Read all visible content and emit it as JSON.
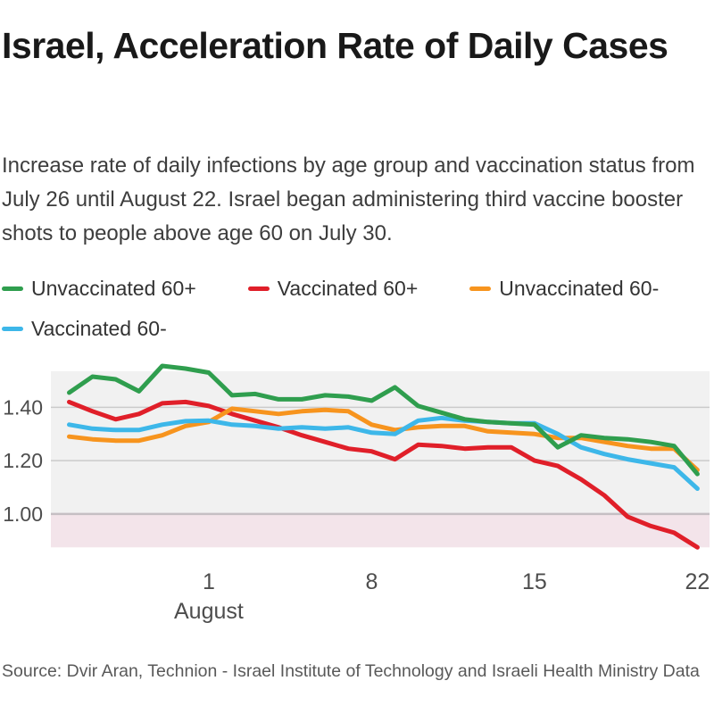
{
  "header": {
    "title": "Israel, Acceleration Rate of Daily Cases",
    "subtitle": "Increase rate of daily infections by age group and vaccination status from July 26 until August 22. Israel began administering third vaccine booster shots to people above age 60 on July 30."
  },
  "legend": {
    "items": [
      {
        "label": "Unvaccinated 60+",
        "color": "#2f9e4e"
      },
      {
        "label": "Vaccinated 60+",
        "color": "#e01f29"
      },
      {
        "label": "Unvaccinated 60-",
        "color": "#f7941e"
      },
      {
        "label": "Vaccinated 60-",
        "color": "#3db7e9"
      }
    ]
  },
  "chart_data": {
    "type": "line",
    "title": "Israel, Acceleration Rate of Daily Cases",
    "xlabel": "August",
    "ylabel": "",
    "grid": true,
    "legend_position": "top",
    "dates": [
      "Jul 26",
      "Jul 27",
      "Jul 28",
      "Jul 29",
      "Jul 30",
      "Jul 31",
      "Aug 1",
      "Aug 2",
      "Aug 3",
      "Aug 4",
      "Aug 5",
      "Aug 6",
      "Aug 7",
      "Aug 8",
      "Aug 9",
      "Aug 10",
      "Aug 11",
      "Aug 12",
      "Aug 13",
      "Aug 14",
      "Aug 15",
      "Aug 16",
      "Aug 17",
      "Aug 18",
      "Aug 19",
      "Aug 20",
      "Aug 21",
      "Aug 22"
    ],
    "series": [
      {
        "name": "Unvaccinated 60+",
        "color": "#2f9e4e",
        "values": [
          1.455,
          1.515,
          1.505,
          1.46,
          1.555,
          1.545,
          1.53,
          1.445,
          1.45,
          1.43,
          1.43,
          1.445,
          1.44,
          1.425,
          1.475,
          1.405,
          1.38,
          1.355,
          1.345,
          1.34,
          1.335,
          1.25,
          1.295,
          1.285,
          1.28,
          1.27,
          1.255,
          1.15
        ]
      },
      {
        "name": "Vaccinated 60+",
        "color": "#e01f29",
        "values": [
          1.42,
          1.385,
          1.355,
          1.375,
          1.415,
          1.42,
          1.405,
          1.375,
          1.35,
          1.325,
          1.295,
          1.27,
          1.245,
          1.235,
          1.205,
          1.26,
          1.255,
          1.245,
          1.25,
          1.25,
          1.2,
          1.18,
          1.13,
          1.07,
          0.99,
          0.955,
          0.93,
          0.875
        ]
      },
      {
        "name": "Unvaccinated 60-",
        "color": "#f7941e",
        "values": [
          1.29,
          1.28,
          1.275,
          1.275,
          1.295,
          1.33,
          1.345,
          1.395,
          1.385,
          1.375,
          1.385,
          1.39,
          1.385,
          1.335,
          1.315,
          1.325,
          1.33,
          1.33,
          1.31,
          1.305,
          1.3,
          1.285,
          1.285,
          1.27,
          1.255,
          1.245,
          1.245,
          1.165
        ]
      },
      {
        "name": "Vaccinated 60-",
        "color": "#3db7e9",
        "values": [
          1.335,
          1.32,
          1.315,
          1.315,
          1.335,
          1.348,
          1.35,
          1.335,
          1.33,
          1.32,
          1.325,
          1.32,
          1.325,
          1.305,
          1.3,
          1.35,
          1.36,
          1.35,
          1.345,
          1.34,
          1.34,
          1.3,
          1.25,
          1.225,
          1.205,
          1.19,
          1.175,
          1.095
        ]
      }
    ],
    "y_ticks": [
      {
        "value": 1.4,
        "label": "1.40"
      },
      {
        "value": 1.2,
        "label": "1.20"
      },
      {
        "value": 1.0,
        "label": "1.00"
      }
    ],
    "x_ticks": [
      {
        "index": 6,
        "label": "1"
      },
      {
        "index": 13,
        "label": "8"
      },
      {
        "index": 20,
        "label": "15"
      },
      {
        "index": 27,
        "label": "22"
      }
    ],
    "x_month_label": "August",
    "x_month_tick_index": 6,
    "y_domain": [
      0.875,
      1.535
    ],
    "colors": {
      "band_above_1": "#f1f1f1",
      "band_below_1": "#f3e4ea",
      "gridline": "#cbcbcb",
      "gridline_1_00": "#c5bfc3",
      "axis_label": "#4d4d4d"
    }
  },
  "footer": {
    "source": "Source: Dvir Aran, Technion - Israel Institute of Technology and Israeli Health Ministry Data"
  }
}
